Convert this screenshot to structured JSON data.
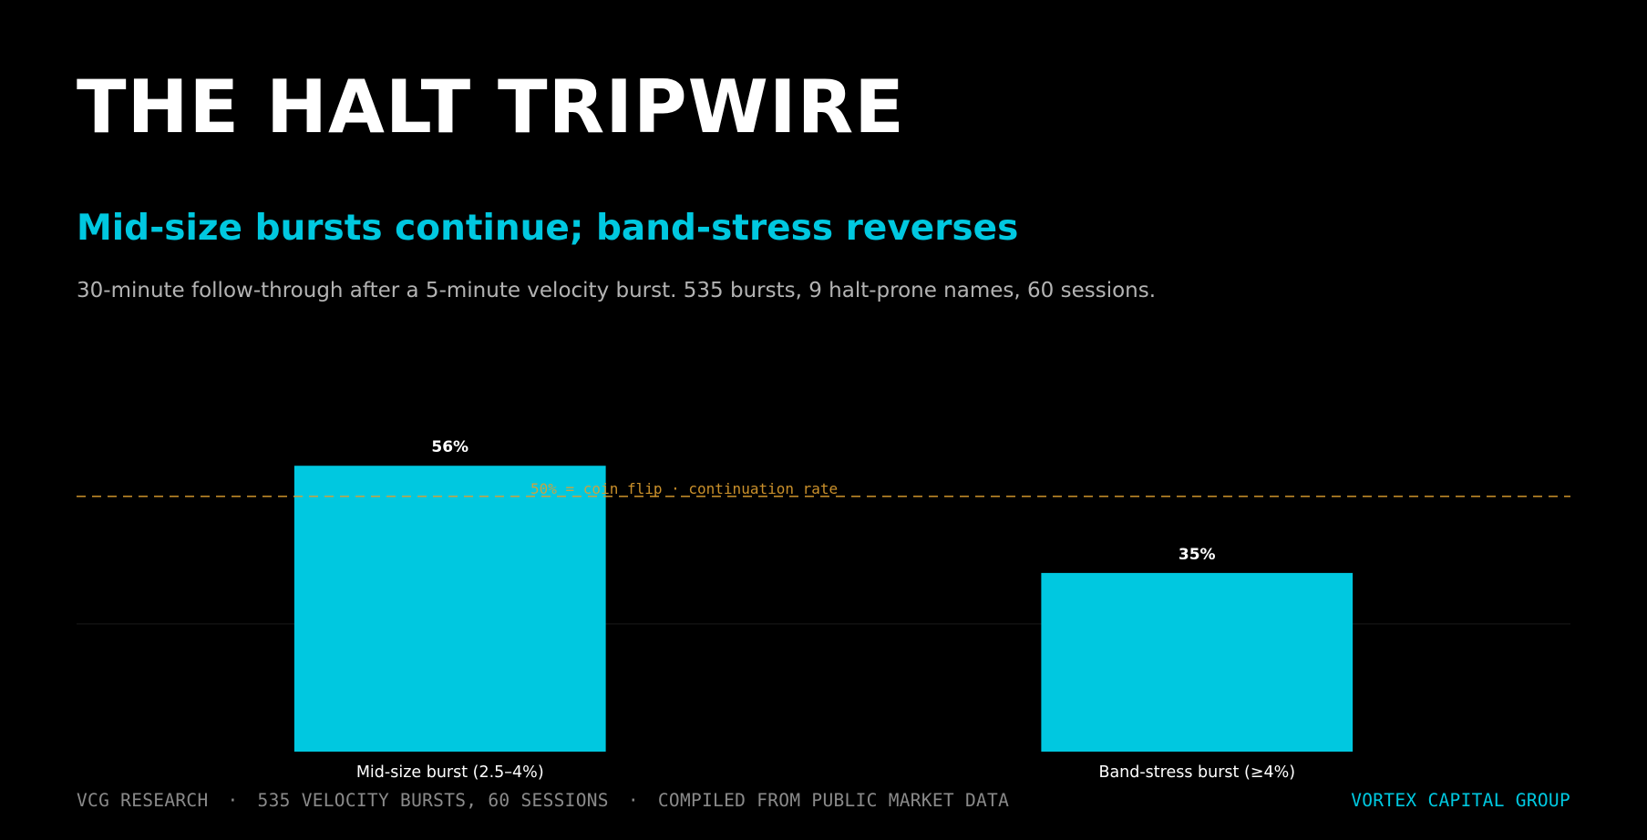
{
  "header": {
    "title": "THE HALT TRIPWIRE",
    "subtitle": "Mid-size bursts continue; band-stress reverses",
    "description": "30-minute follow-through after a 5-minute velocity burst. 535 bursts, 9 halt-prone names, 60 sessions."
  },
  "colors": {
    "background": "#000000",
    "accent": "#00c8e0",
    "bar": "#00c8e0",
    "reference_line": "#e0a030",
    "grid": "#1a1a1a",
    "value_label": "#ffffff",
    "category_label": "#ffffff"
  },
  "chart_data": {
    "type": "bar",
    "categories": [
      "Mid-size burst (2.5–4%)",
      "Band-stress burst (≥4%)"
    ],
    "values": [
      56,
      35
    ],
    "value_labels": [
      "56%",
      "35%"
    ],
    "ylabel": "",
    "xlabel": "",
    "ylim": [
      0,
      63
    ],
    "grid": "horizontal",
    "gridlines": [
      25
    ],
    "reference_line": {
      "value": 50,
      "label": "50% = coin flip   ·   continuation rate"
    }
  },
  "footer": {
    "left_items": [
      "VCG RESEARCH",
      "535 VELOCITY BURSTS, 60 SESSIONS",
      "COMPILED FROM PUBLIC MARKET DATA"
    ],
    "separator": "·",
    "brand": "VORTEX CAPITAL GROUP"
  }
}
